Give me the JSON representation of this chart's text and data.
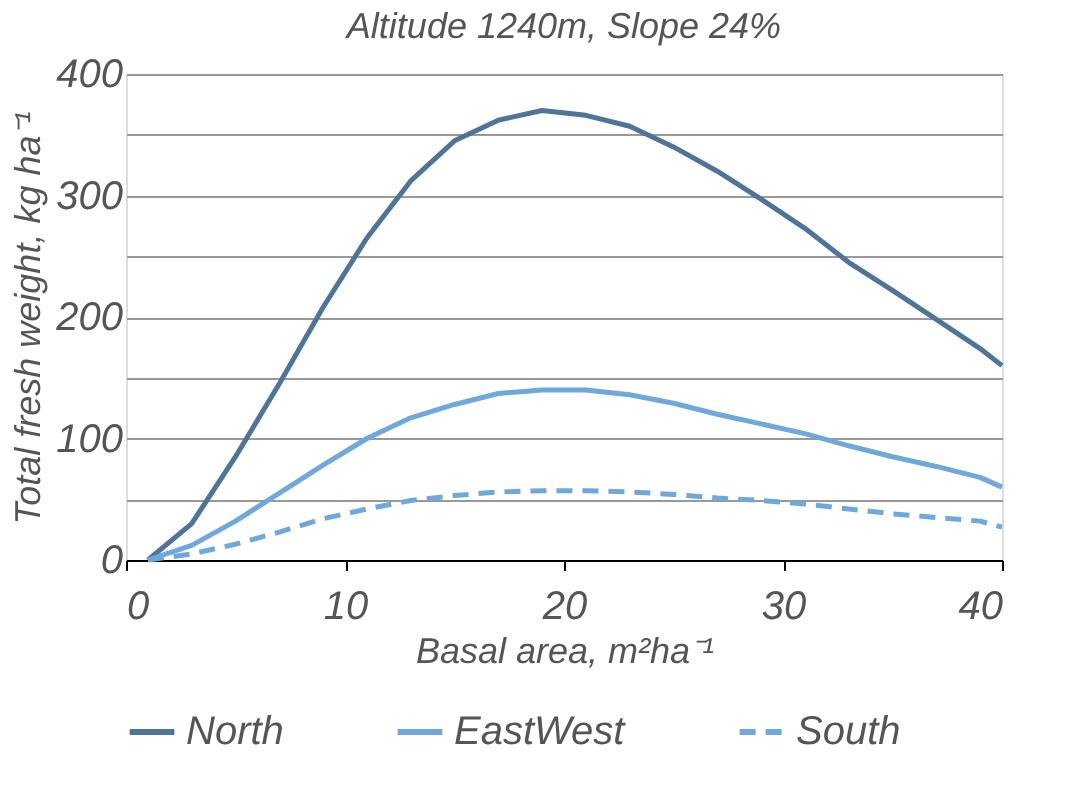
{
  "chart_data": {
    "type": "line",
    "title": "Altitude 1240m, Slope 24%",
    "xlabel": "Basal area, m²ha⁻¹",
    "ylabel": "Total fresh weight, kg ha⁻¹",
    "x": [
      1,
      3,
      5,
      7,
      9,
      11,
      13,
      15,
      17,
      19,
      21,
      23,
      25,
      27,
      29,
      31,
      33,
      35,
      37,
      39,
      40
    ],
    "series": [
      {
        "name": "North",
        "color": "#4e7499",
        "line_style": "solid",
        "values": [
          0,
          30,
          85,
          145,
          208,
          265,
          312,
          345,
          362,
          370,
          366,
          357,
          340,
          320,
          297,
          273,
          245,
          222,
          198,
          174,
          160
        ]
      },
      {
        "name": "EastWest",
        "color": "#6fa8dc",
        "line_style": "solid",
        "values": [
          0,
          12,
          32,
          55,
          78,
          100,
          117,
          128,
          137,
          140,
          140,
          136,
          129,
          120,
          112,
          104,
          94,
          85,
          77,
          68,
          60
        ]
      },
      {
        "name": "South",
        "color": "#6fa8dc",
        "line_style": "dashed",
        "values": [
          0,
          5,
          13,
          23,
          34,
          42,
          49,
          53,
          56,
          57,
          57,
          56,
          54,
          51,
          49,
          46,
          42,
          38,
          35,
          32,
          27
        ]
      }
    ],
    "xlim": [
      0,
      40
    ],
    "xticks": [
      0,
      10,
      20,
      30,
      40
    ],
    "ylim": [
      0,
      400
    ],
    "yticks": [
      0,
      {
        "value": 50,
        "label": null
      },
      100,
      {
        "value": 150,
        "label": null
      },
      200,
      {
        "value": 250,
        "label": null
      },
      300,
      {
        "value": 350,
        "label": null
      },
      400
    ],
    "grid": "y",
    "legend": "bottom"
  }
}
